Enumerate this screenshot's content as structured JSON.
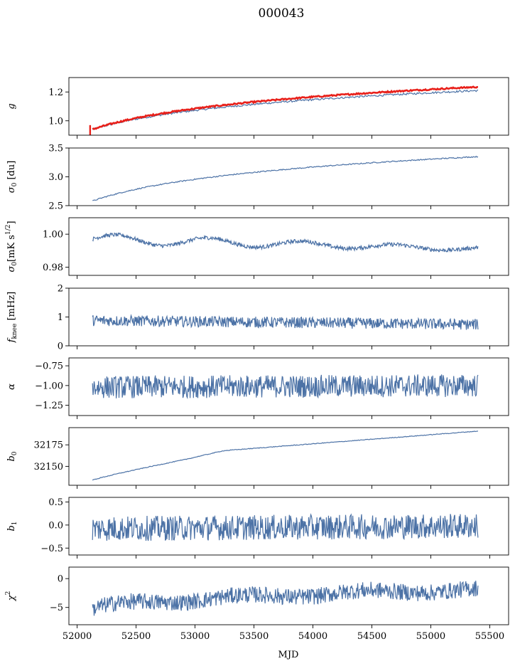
{
  "chart_data": {
    "title": "000043",
    "xlabel": "MJD",
    "xlim": [
      51930,
      55660
    ],
    "x_ticks": [
      "52000",
      "52500",
      "53000",
      "53500",
      "54000",
      "54500",
      "55000",
      "55500"
    ],
    "x_tick_values": [
      52000,
      52500,
      53000,
      53500,
      54000,
      54500,
      55000,
      55500
    ],
    "x_start": 52130,
    "x_end": 55400,
    "line_color": "#4c72a6",
    "overlay_color": "#e8201a",
    "panels": [
      {
        "key": "g",
        "type": "line",
        "ylabel": "g",
        "ylabel_sub": "",
        "ylabel_suffix": "",
        "ylim": [
          0.9,
          1.3
        ],
        "y_ticks": [
          "1.0",
          "1.2"
        ],
        "y_tick_values": [
          1.0,
          1.2
        ],
        "start": 0.94,
        "end": 1.21,
        "shape": "log",
        "noise": 0.004,
        "overlay": {
          "name": "",
          "start": 0.94,
          "end": 1.235,
          "noise": 0.003,
          "errorbar": [
            52110,
            0.9,
            0.97
          ]
        }
      },
      {
        "key": "sigma0du",
        "type": "line",
        "ylabel": "σ",
        "ylabel_sub": "0",
        "ylabel_suffix": " [du]",
        "ylim": [
          2.5,
          3.5
        ],
        "y_ticks": [
          "2.5",
          "3.0",
          "3.5"
        ],
        "y_tick_values": [
          2.5,
          3.0,
          3.5
        ],
        "start": 2.58,
        "end": 3.35,
        "shape": "log",
        "noise": 0.006
      },
      {
        "key": "sigma0mk",
        "type": "line",
        "ylabel": "σ",
        "ylabel_sub": "0",
        "ylabel_suffix": "[mK s",
        "ylabel_sup": "1/2",
        "ylabel_end": "]",
        "ylim": [
          0.975,
          1.01
        ],
        "y_ticks": [
          "0.98",
          "1.00"
        ],
        "y_tick_values": [
          0.98,
          1.0
        ],
        "start": 0.997,
        "end": 0.991,
        "shape": "wave",
        "noise": 0.0012,
        "wave_amp": 0.003
      },
      {
        "key": "fknee",
        "type": "line",
        "ylabel": "f",
        "ylabel_sub": "knee",
        "ylabel_suffix": " [mHz]",
        "ylim": [
          0,
          2
        ],
        "y_ticks": [
          "0",
          "1",
          "2"
        ],
        "y_tick_values": [
          0,
          1,
          2
        ],
        "start": 0.88,
        "end": 0.74,
        "shape": "flat",
        "noise": 0.12
      },
      {
        "key": "alpha",
        "type": "line",
        "ylabel": "α",
        "ylabel_sub": "",
        "ylabel_suffix": "",
        "ylim": [
          -1.38,
          -0.65
        ],
        "y_ticks": [
          "−1.25",
          "−1.00",
          "−0.75"
        ],
        "y_tick_values": [
          -1.25,
          -1.0,
          -0.75
        ],
        "start": -1.02,
        "end": -1.0,
        "shape": "flat",
        "noise": 0.09
      },
      {
        "key": "b0",
        "type": "line",
        "ylabel": "b",
        "ylabel_sub": "0",
        "ylabel_suffix": "",
        "ylim": [
          32128,
          32195
        ],
        "y_ticks": [
          "32150",
          "32175"
        ],
        "y_tick_values": [
          32150,
          32175
        ],
        "start": 32134,
        "end": 32191,
        "shape": "b0",
        "noise": 0.25
      },
      {
        "key": "b1",
        "type": "line",
        "ylabel": "b",
        "ylabel_sub": "1",
        "ylabel_suffix": "",
        "ylim": [
          -0.65,
          0.6
        ],
        "y_ticks": [
          "−0.5",
          "0.0",
          "0.5"
        ],
        "y_tick_values": [
          -0.5,
          0.0,
          0.5
        ],
        "start": -0.08,
        "end": -0.02,
        "shape": "flat",
        "noise": 0.17
      },
      {
        "key": "chi2",
        "type": "line",
        "ylabel": "χ",
        "ylabel_sub": "",
        "ylabel_suffix": "",
        "ylabel_sup": "2",
        "ylim": [
          -8,
          2
        ],
        "y_ticks": [
          "−5",
          "0"
        ],
        "y_tick_values": [
          -5,
          0
        ],
        "start": -5.5,
        "end": -2.0,
        "shape": "chi",
        "noise": 0.9
      }
    ]
  }
}
